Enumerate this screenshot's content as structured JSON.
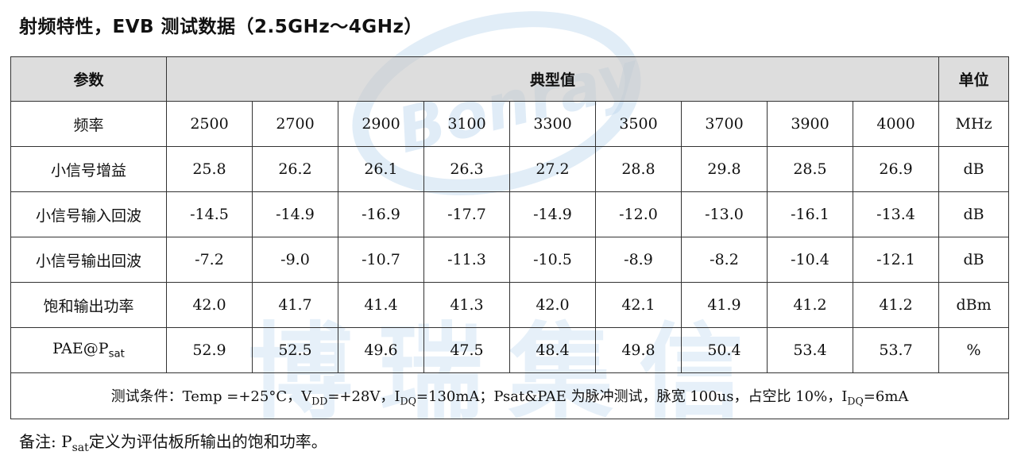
{
  "title": "射频特性，EVB 测试数据（2.5GHz～4GHz）",
  "watermark": {
    "logo_text": "Bonray",
    "company_text": "博瑞集信"
  },
  "table": {
    "headers": {
      "param": "参数",
      "typical": "典型值",
      "unit": "单位"
    },
    "rows": [
      {
        "param": "频率",
        "values": [
          "2500",
          "2700",
          "2900",
          "3100",
          "3300",
          "3500",
          "3700",
          "3900",
          "4000"
        ],
        "unit": "MHz"
      },
      {
        "param": "小信号增益",
        "values": [
          "25.8",
          "26.2",
          "26.1",
          "26.3",
          "27.2",
          "28.8",
          "29.8",
          "28.5",
          "26.9"
        ],
        "unit": "dB"
      },
      {
        "param": "小信号输入回波",
        "values": [
          "-14.5",
          "-14.9",
          "-16.9",
          "-17.7",
          "-14.9",
          "-12.0",
          "-13.0",
          "-16.1",
          "-13.4"
        ],
        "unit": "dB"
      },
      {
        "param": "小信号输出回波",
        "values": [
          "-7.2",
          "-9.0",
          "-10.7",
          "-11.3",
          "-10.5",
          "-8.9",
          "-8.2",
          "-10.4",
          "-12.1"
        ],
        "unit": "dB"
      },
      {
        "param": "饱和输出功率",
        "values": [
          "42.0",
          "41.7",
          "41.4",
          "41.3",
          "42.0",
          "42.1",
          "41.9",
          "41.2",
          "41.2"
        ],
        "unit": "dBm"
      },
      {
        "param_main": "PAE@P",
        "param_sub": "sat",
        "values": [
          "52.9",
          "52.5",
          "49.6",
          "47.5",
          "48.4",
          "49.8",
          "50.4",
          "53.4",
          "53.7"
        ],
        "unit": "%"
      }
    ],
    "conditions": {
      "prefix": "测试条件：Temp =+25°C，V",
      "vdd_sub": "DD",
      "vdd_val": "=+28V，I",
      "idq_sub": "DQ",
      "idq_val": "=130mA；Psat&PAE 为脉冲测试，脉宽 100us，占空比 10%，I",
      "idq2_sub": "DQ",
      "idq2_val": "=6mA"
    }
  },
  "note": {
    "prefix": "备注: P",
    "sub": "sat",
    "suffix": "定义为评估板所输出的饱和功率。"
  }
}
